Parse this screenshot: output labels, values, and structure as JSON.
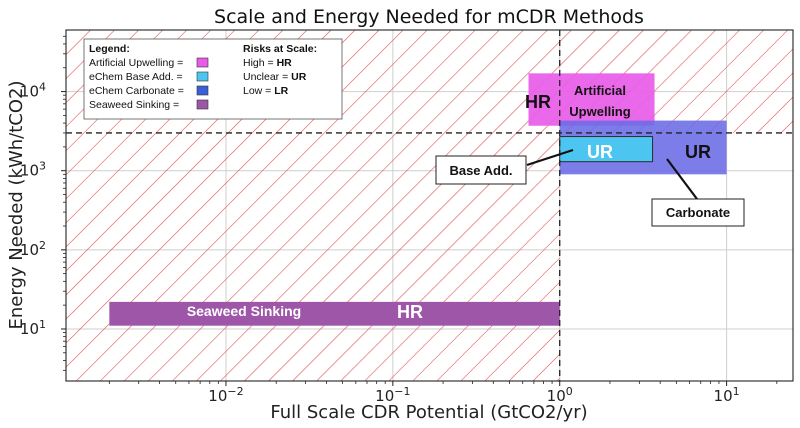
{
  "chart_data": {
    "type": "bar",
    "title": "Scale and Energy Needed for mCDR Methods",
    "xlabel": "Full Scale CDR Potential (GtCO2/yr)",
    "ylabel": "Energy Needed (kWh/tCO2)",
    "x_scale": "log",
    "y_scale": "log",
    "xlim": [
      0.0011,
      25
    ],
    "ylim": [
      2.2,
      60000
    ],
    "x_ticks": [
      {
        "value": 0.01,
        "base": "10",
        "exp": "−2"
      },
      {
        "value": 0.1,
        "base": "10",
        "exp": "−1"
      },
      {
        "value": 1,
        "label": "10",
        "exp": "0"
      },
      {
        "value": 10,
        "base": "10",
        "exp": "1"
      }
    ],
    "y_ticks": [
      {
        "value": 10,
        "base": "10",
        "exp": "1"
      },
      {
        "value": 100,
        "base": "10",
        "exp": "2"
      },
      {
        "value": 1000,
        "base": "10",
        "exp": "3"
      },
      {
        "value": 10000,
        "base": "10",
        "exp": "4"
      }
    ],
    "grid": true,
    "thresholds": {
      "x": 1,
      "y": 3000
    },
    "hatched_region": "x < 1 or y > 3000",
    "regions": [
      {
        "name": "Seaweed Sinking",
        "x": [
          0.002,
          1
        ],
        "y": [
          11,
          22
        ],
        "color": "#9e57a8",
        "risk": "HR"
      },
      {
        "name": "Artificial Upwelling",
        "x": [
          0.65,
          3.7
        ],
        "y": [
          3700,
          17000
        ],
        "color": "#e85ce8",
        "risk": "HR"
      },
      {
        "name": "eChem Carbonate",
        "x": [
          1,
          10
        ],
        "y": [
          900,
          4300
        ],
        "color": "#6b6be6",
        "risk": "UR"
      },
      {
        "name": "eChem Base Add.",
        "x": [
          1,
          3.6
        ],
        "y": [
          1300,
          2700
        ],
        "color": "#4cc6f0",
        "risk": "UR"
      }
    ]
  },
  "labels": {
    "seaweed": "Seaweed Sinking",
    "seaweed_risk": "HR",
    "upwelling_risk": "HR",
    "upwelling_line1": "Artificial",
    "upwelling_line2": "Upwelling",
    "base_risk": "UR",
    "carbonate_risk": "UR",
    "callout_base": "Base Add.",
    "callout_carbonate": "Carbonate"
  },
  "legend": {
    "title": "Legend:",
    "items": [
      {
        "label": "Artificial Upwelling =",
        "color": "#e85ce8"
      },
      {
        "label": "eChem Base Add. =",
        "color": "#4cc6f0"
      },
      {
        "label": "eChem Carbonate =",
        "color": "#3a5fd8"
      },
      {
        "label": "Seaweed Sinking =",
        "color": "#9e57a8"
      }
    ],
    "risk_title": "Risks at Scale:",
    "risks": [
      {
        "prefix": "High = ",
        "code": "HR"
      },
      {
        "prefix": "Unclear = ",
        "code": "UR"
      },
      {
        "prefix": "Low = ",
        "code": "LR"
      }
    ]
  }
}
